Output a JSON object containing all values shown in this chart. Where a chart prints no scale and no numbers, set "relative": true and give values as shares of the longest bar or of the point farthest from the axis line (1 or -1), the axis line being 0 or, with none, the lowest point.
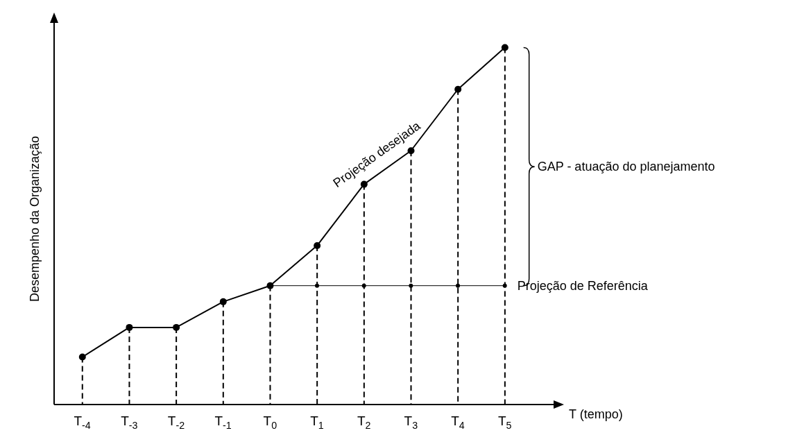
{
  "chart_data": {
    "type": "line",
    "relative": true,
    "xlabel": "T (tempo)",
    "ylabel": "Desempenho da Organização",
    "categories": [
      "T$_{-4}$",
      "T$_{-3}$",
      "T$_{-2}$",
      "T$_{-1}$",
      "T$_{0}$",
      "T$_{1}$",
      "T$_{2}$",
      "T$_{3}$",
      "T$_{4}$",
      "T$_{5}$"
    ],
    "series": [
      {
        "name": "Projeção desejada",
        "color": "#000000",
        "marker": "none",
        "values": [
          0.133,
          0.216,
          0.216,
          0.288,
          0.333,
          0.445,
          0.617,
          0.711,
          0.883,
          1
        ]
      },
      {
        "name": "Projeção de Referência",
        "color": "#000000",
        "values": [
          null,
          null,
          null,
          null,
          0.333,
          0.333,
          0.333,
          0.333,
          0.333,
          0.333
        ]
      },
      {
        "type": "lollipop",
        "color": "#000000",
        "line_style": "dashed",
        "values": [
          0.133,
          0.216,
          0.216,
          0.288,
          0.333,
          0.445,
          0.617,
          0.711,
          0.883,
          1
        ]
      }
    ],
    "annotations": [
      "GAP - atuação do planejamento"
    ],
    "marker": "circle",
    "line_style": "solid"
  }
}
